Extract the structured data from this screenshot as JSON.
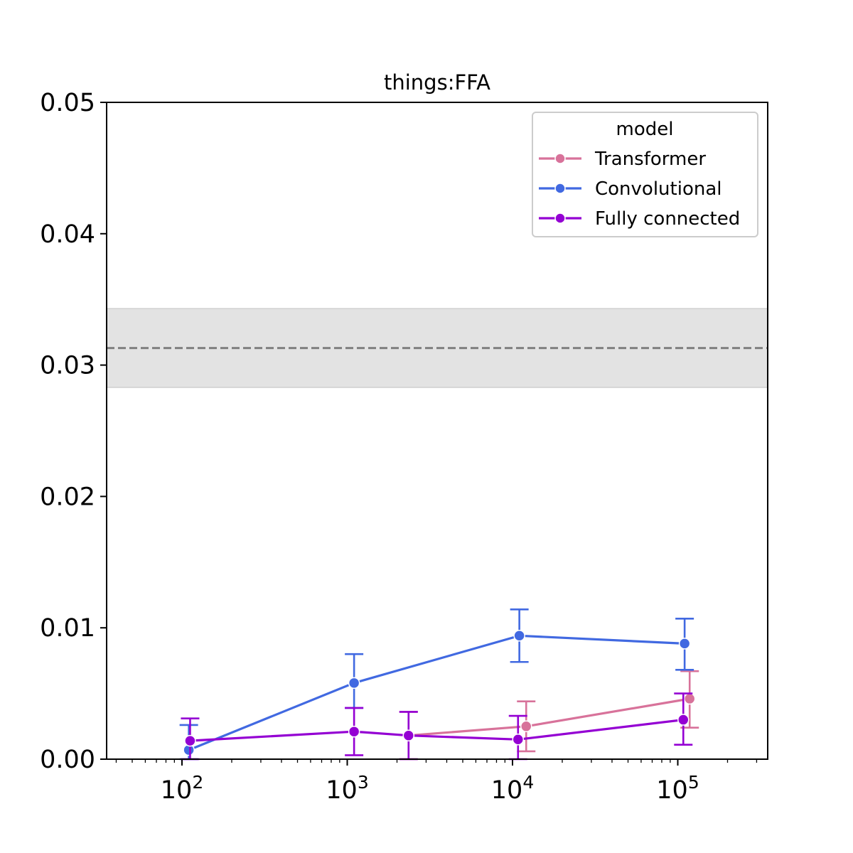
{
  "chart_data": {
    "type": "line",
    "title": "things:FFA",
    "xlabel": "",
    "ylabel": "",
    "x_scale": "log",
    "xlim": [
      35,
      350000
    ],
    "ylim": [
      0,
      0.05
    ],
    "x_ticks": [
      {
        "value": 100,
        "base": "10",
        "exp": "2"
      },
      {
        "value": 1000,
        "base": "10",
        "exp": "3"
      },
      {
        "value": 10000,
        "base": "10",
        "exp": "4"
      },
      {
        "value": 100000,
        "base": "10",
        "exp": "5"
      }
    ],
    "y_ticks": [
      {
        "value": 0.0,
        "label": "0.00"
      },
      {
        "value": 0.01,
        "label": "0.01"
      },
      {
        "value": 0.02,
        "label": "0.02"
      },
      {
        "value": 0.03,
        "label": "0.03"
      },
      {
        "value": 0.04,
        "label": "0.04"
      },
      {
        "value": 0.05,
        "label": "0.05"
      }
    ],
    "grid": false,
    "reference_band": {
      "center": 0.0313,
      "low": 0.0283,
      "high": 0.0343,
      "line_color": "#808080",
      "fill_color": "#e3e3e3"
    },
    "legend": {
      "title": "model",
      "placement": "top-right"
    },
    "series": [
      {
        "name": "Transformer",
        "color": "#d8729a",
        "points": [
          {
            "x": 2350,
            "y": 0.0018,
            "lo": 0.0,
            "hi": 0.0036
          },
          {
            "x": 12100,
            "y": 0.0025,
            "lo": 0.0006,
            "hi": 0.0044
          },
          {
            "x": 118000,
            "y": 0.0046,
            "lo": 0.0024,
            "hi": 0.0067
          }
        ]
      },
      {
        "name": "Convolutional",
        "color": "#4169e1",
        "points": [
          {
            "x": 110,
            "y": 0.0007,
            "lo": 0.0,
            "hi": 0.0026
          },
          {
            "x": 1100,
            "y": 0.0058,
            "lo": 0.0039,
            "hi": 0.008
          },
          {
            "x": 11000,
            "y": 0.0094,
            "lo": 0.0074,
            "hi": 0.0114
          },
          {
            "x": 110000,
            "y": 0.0088,
            "lo": 0.0068,
            "hi": 0.0107
          }
        ]
      },
      {
        "name": "Fully connected",
        "color": "#9400d3",
        "points": [
          {
            "x": 112,
            "y": 0.0014,
            "lo": 0.0,
            "hi": 0.0031
          },
          {
            "x": 1100,
            "y": 0.0021,
            "lo": 0.0003,
            "hi": 0.0039
          },
          {
            "x": 2350,
            "y": 0.0018,
            "lo": 0.0,
            "hi": 0.0036
          },
          {
            "x": 10800,
            "y": 0.0015,
            "lo": 0.0,
            "hi": 0.0033
          },
          {
            "x": 108000,
            "y": 0.003,
            "lo": 0.0011,
            "hi": 0.005
          }
        ]
      }
    ]
  }
}
